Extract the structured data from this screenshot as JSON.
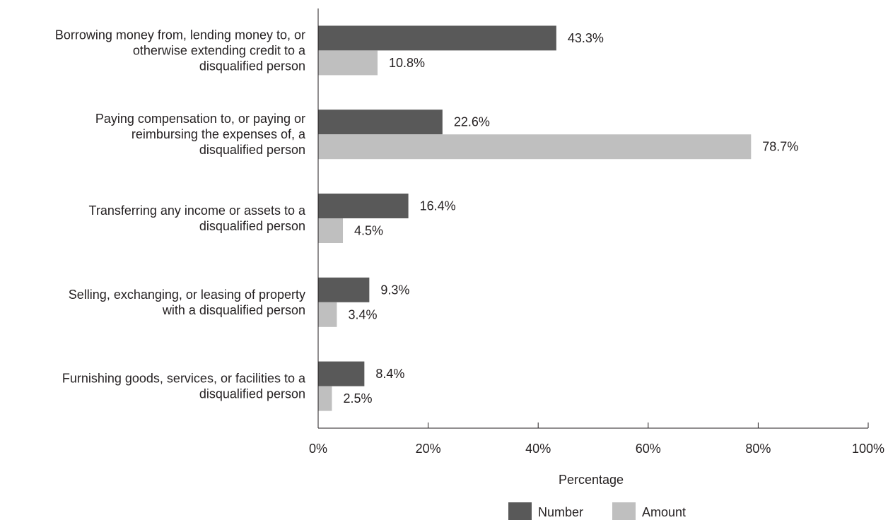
{
  "chart_data": {
    "type": "bar",
    "orientation": "horizontal",
    "categories": [
      "Borrowing money from, lending money to, or otherwise extending credit to a disqualified person",
      "Paying compensation to, or paying or reimbursing the expenses of, a disqualified person",
      "Transferring any income or assets to a disqualified person",
      "Selling, exchanging, or leasing of property with a disqualified person",
      "Furnishing goods, services, or facilities to a disqualified person"
    ],
    "category_lines": [
      [
        "Borrowing money from, lending money to, or",
        "otherwise extending credit to a",
        "disqualified person"
      ],
      [
        "Paying compensation to, or paying or",
        "reimbursing the expenses of, a",
        "disqualified person"
      ],
      [
        "Transferring any income or assets to a",
        "disqualified person"
      ],
      [
        "Selling, exchanging, or leasing of property",
        "with a disqualified person"
      ],
      [
        "Furnishing goods, services, or facilities to a",
        "disqualified person"
      ]
    ],
    "series": [
      {
        "name": "Number",
        "color": "#595959",
        "values": [
          43.3,
          22.6,
          16.4,
          9.3,
          8.4
        ],
        "labels": [
          "43.3%",
          "22.6%",
          "16.4%",
          "9.3%",
          "8.4%"
        ]
      },
      {
        "name": "Amount",
        "color": "#bfbfbf",
        "values": [
          10.8,
          78.7,
          4.5,
          3.4,
          2.5
        ],
        "labels": [
          "10.8%",
          "78.7%",
          "4.5%",
          "3.4%",
          "2.5%"
        ]
      }
    ],
    "xlim": [
      0,
      100
    ],
    "x_ticks": [
      0,
      20,
      40,
      60,
      80,
      100
    ],
    "x_tick_labels": [
      "0%",
      "20%",
      "40%",
      "60%",
      "80%",
      "100%"
    ],
    "xlabel": "Percentage",
    "ylabel": "",
    "title": "",
    "legend_position": "bottom",
    "grid": false
  }
}
